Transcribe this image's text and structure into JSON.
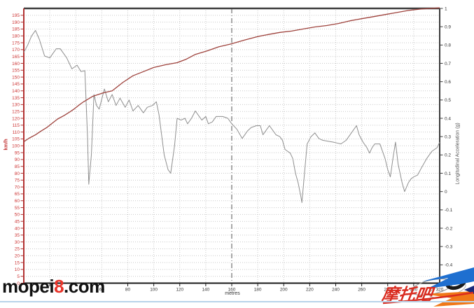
{
  "watermark": {
    "prefix": "mopei",
    "highlight": "8",
    "suffix": ".com"
  },
  "logo": {
    "text": "摩托吧"
  },
  "chart_data": {
    "type": "line",
    "title": "",
    "xlabel": "metres",
    "xlim": [
      0,
      320
    ],
    "x_tick_step": 20,
    "x_tick_labels": [
      60,
      80,
      100,
      120,
      140,
      160,
      180,
      200,
      220,
      240,
      260,
      280,
      300,
      320
    ],
    "marker_line_x": 160,
    "grid": true,
    "left_axis": {
      "label": "km/h",
      "lim": [
        0,
        200
      ],
      "tick_step": 5,
      "color": "#cc3333",
      "spine_color": "#b23333"
    },
    "right_axis": {
      "label": "Longitudinal Acceleration (g)",
      "lim": [
        -0.5,
        1.0
      ],
      "tick_step": 0.1,
      "color": "#333333",
      "spine_color": "#3c3c3c"
    },
    "series": [
      {
        "name": "longitudinal_acceleration_g",
        "axis": "right",
        "color": "#8f8f8f",
        "width": 1,
        "points": [
          [
            0,
            0.76
          ],
          [
            3,
            0.8
          ],
          [
            6,
            0.85
          ],
          [
            9,
            0.88
          ],
          [
            12,
            0.83
          ],
          [
            16,
            0.74
          ],
          [
            20,
            0.73
          ],
          [
            25,
            0.78
          ],
          [
            28,
            0.78
          ],
          [
            33,
            0.73
          ],
          [
            37,
            0.67
          ],
          [
            41,
            0.69
          ],
          [
            44,
            0.655
          ],
          [
            47,
            0.66
          ],
          [
            49,
            0.3
          ],
          [
            50,
            0.04
          ],
          [
            52,
            0.2
          ],
          [
            54,
            0.53
          ],
          [
            56,
            0.47
          ],
          [
            58,
            0.45
          ],
          [
            62,
            0.56
          ],
          [
            65,
            0.49
          ],
          [
            68,
            0.53
          ],
          [
            71,
            0.47
          ],
          [
            74,
            0.51
          ],
          [
            78,
            0.46
          ],
          [
            81,
            0.5
          ],
          [
            84,
            0.44
          ],
          [
            88,
            0.47
          ],
          [
            92,
            0.43
          ],
          [
            95,
            0.46
          ],
          [
            99,
            0.47
          ],
          [
            102,
            0.49
          ],
          [
            104,
            0.42
          ],
          [
            108,
            0.2
          ],
          [
            111,
            0.12
          ],
          [
            113,
            0.1
          ],
          [
            116,
            0.25
          ],
          [
            118,
            0.4
          ],
          [
            121,
            0.39
          ],
          [
            124,
            0.4
          ],
          [
            126,
            0.37
          ],
          [
            129,
            0.4
          ],
          [
            132,
            0.44
          ],
          [
            135,
            0.41
          ],
          [
            137,
            0.39
          ],
          [
            140,
            0.41
          ],
          [
            142,
            0.37
          ],
          [
            145,
            0.38
          ],
          [
            148,
            0.41
          ],
          [
            153,
            0.41
          ],
          [
            157,
            0.4
          ],
          [
            160,
            0.37
          ],
          [
            164,
            0.34
          ],
          [
            168,
            0.29
          ],
          [
            172,
            0.33
          ],
          [
            175,
            0.35
          ],
          [
            179,
            0.36
          ],
          [
            182,
            0.36
          ],
          [
            184,
            0.31
          ],
          [
            187,
            0.34
          ],
          [
            189,
            0.36
          ],
          [
            192,
            0.33
          ],
          [
            194,
            0.31
          ],
          [
            197,
            0.3
          ],
          [
            199,
            0.28
          ],
          [
            201,
            0.23
          ],
          [
            203,
            0.22
          ],
          [
            205,
            0.21
          ],
          [
            207,
            0.18
          ],
          [
            209,
            0.1
          ],
          [
            211,
            0.05
          ],
          [
            213,
            -0.02
          ],
          [
            214,
            -0.06
          ],
          [
            216,
            0.1
          ],
          [
            218,
            0.26
          ],
          [
            221,
            0.3
          ],
          [
            224,
            0.32
          ],
          [
            227,
            0.29
          ],
          [
            230,
            0.28
          ],
          [
            234,
            0.275
          ],
          [
            238,
            0.27
          ],
          [
            241,
            0.265
          ],
          [
            244,
            0.26
          ],
          [
            248,
            0.28
          ],
          [
            252,
            0.32
          ],
          [
            256,
            0.36
          ],
          [
            258,
            0.31
          ],
          [
            261,
            0.27
          ],
          [
            264,
            0.24
          ],
          [
            266,
            0.21
          ],
          [
            268,
            0.24
          ],
          [
            270,
            0.26
          ],
          [
            274,
            0.26
          ],
          [
            276,
            0.22
          ],
          [
            278,
            0.18
          ],
          [
            280,
            0.12
          ],
          [
            282,
            0.08
          ],
          [
            284,
            0.18
          ],
          [
            286,
            0.27
          ],
          [
            288,
            0.15
          ],
          [
            291,
            0.05
          ],
          [
            293,
            0.0
          ],
          [
            296,
            0.05
          ],
          [
            298,
            0.07
          ],
          [
            300,
            0.08
          ],
          [
            303,
            0.09
          ],
          [
            306,
            0.13
          ],
          [
            310,
            0.18
          ],
          [
            314,
            0.22
          ],
          [
            318,
            0.24
          ],
          [
            320,
            0.27
          ]
        ]
      },
      {
        "name": "speed_kmh",
        "axis": "left",
        "color": "#9e423c",
        "width": 1.3,
        "points": [
          [
            0,
            103
          ],
          [
            4,
            105.5
          ],
          [
            9,
            108
          ],
          [
            13,
            110.5
          ],
          [
            18,
            113.5
          ],
          [
            22,
            116.5
          ],
          [
            26,
            119.5
          ],
          [
            31,
            122
          ],
          [
            36,
            125
          ],
          [
            39,
            127
          ],
          [
            43,
            130
          ],
          [
            46,
            132
          ],
          [
            53,
            136
          ],
          [
            61,
            138.5
          ],
          [
            68,
            140
          ],
          [
            76,
            146
          ],
          [
            84,
            151
          ],
          [
            92,
            154
          ],
          [
            100,
            157
          ],
          [
            109,
            159
          ],
          [
            118,
            160.5
          ],
          [
            125,
            163
          ],
          [
            132,
            166.5
          ],
          [
            141,
            169
          ],
          [
            150,
            172
          ],
          [
            159,
            174
          ],
          [
            170,
            177
          ],
          [
            180,
            179.5
          ],
          [
            188,
            181
          ],
          [
            197,
            182.5
          ],
          [
            206,
            183.5
          ],
          [
            215,
            185
          ],
          [
            224,
            186.5
          ],
          [
            233,
            187.5
          ],
          [
            242,
            189
          ],
          [
            251,
            191
          ],
          [
            260,
            192.5
          ],
          [
            269,
            194
          ],
          [
            278,
            195.5
          ],
          [
            287,
            197
          ],
          [
            296,
            198.5
          ],
          [
            305,
            199.5
          ],
          [
            313,
            200
          ],
          [
            320,
            200.4
          ]
        ]
      }
    ]
  }
}
